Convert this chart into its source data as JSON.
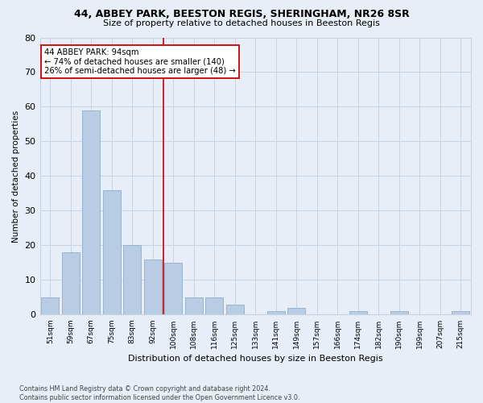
{
  "title1": "44, ABBEY PARK, BEESTON REGIS, SHERINGHAM, NR26 8SR",
  "title2": "Size of property relative to detached houses in Beeston Regis",
  "xlabel": "Distribution of detached houses by size in Beeston Regis",
  "ylabel": "Number of detached properties",
  "footnote": "Contains HM Land Registry data © Crown copyright and database right 2024.\nContains public sector information licensed under the Open Government Licence v3.0.",
  "categories": [
    "51sqm",
    "59sqm",
    "67sqm",
    "75sqm",
    "83sqm",
    "92sqm",
    "100sqm",
    "108sqm",
    "116sqm",
    "125sqm",
    "133sqm",
    "141sqm",
    "149sqm",
    "157sqm",
    "166sqm",
    "174sqm",
    "182sqm",
    "190sqm",
    "199sqm",
    "207sqm",
    "215sqm"
  ],
  "values": [
    5,
    18,
    59,
    36,
    20,
    16,
    15,
    5,
    5,
    3,
    0,
    1,
    2,
    0,
    0,
    1,
    0,
    1,
    0,
    0,
    1
  ],
  "bar_color": "#b8cce4",
  "bar_edge_color": "#8faecb",
  "grid_color": "#c8d4e4",
  "background_color": "#e8eef8",
  "vline_x": 5.5,
  "vline_color": "#cc0000",
  "annotation_text": "44 ABBEY PARK: 94sqm\n← 74% of detached houses are smaller (140)\n26% of semi-detached houses are larger (48) →",
  "annotation_box_color": "#ffffff",
  "annotation_box_edge": "#cc0000",
  "ylim": [
    0,
    80
  ],
  "yticks": [
    0,
    10,
    20,
    30,
    40,
    50,
    60,
    70,
    80
  ]
}
